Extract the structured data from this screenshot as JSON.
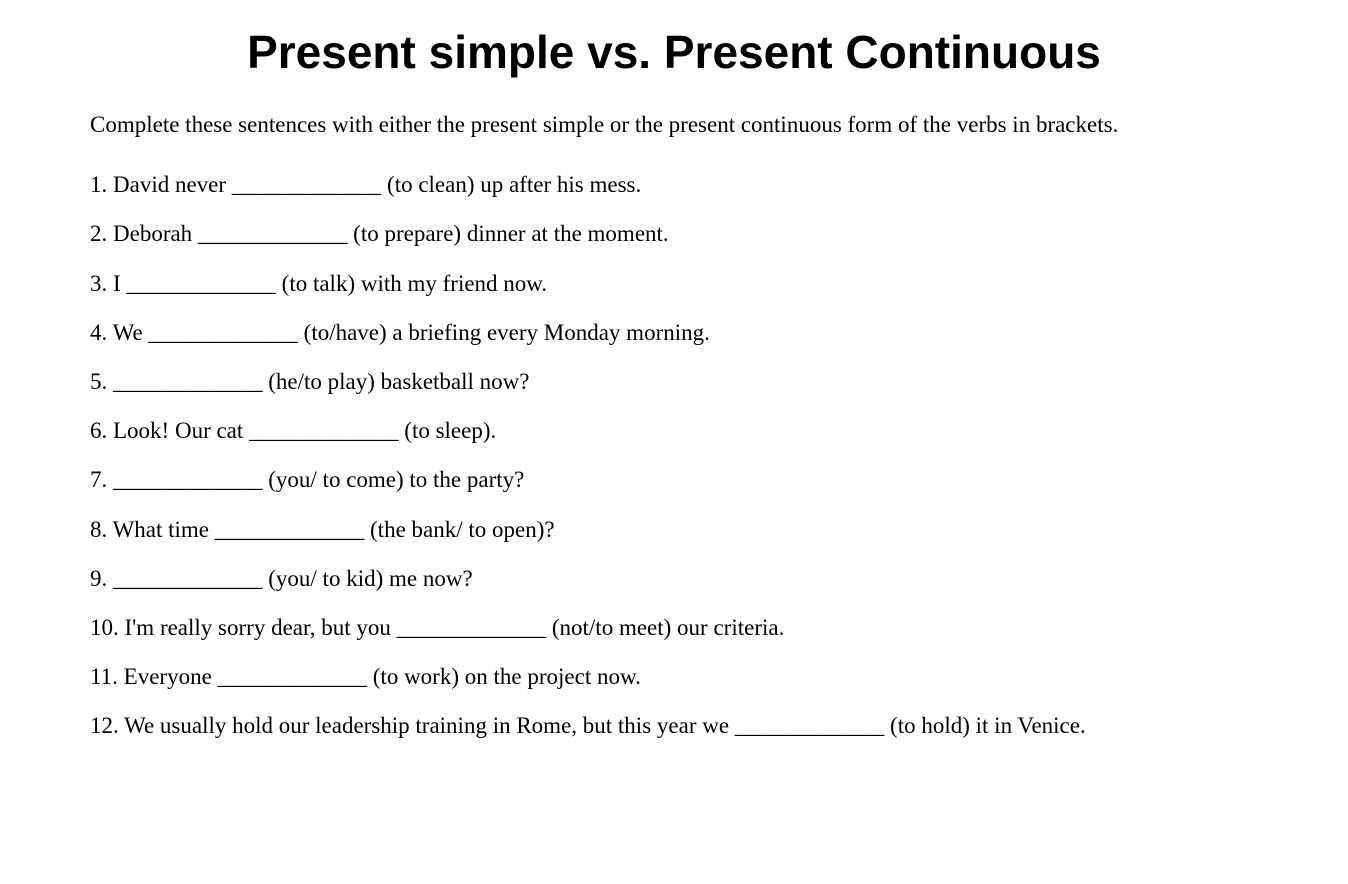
{
  "title": "Present simple vs. Present Continuous",
  "instructions": "Complete these sentences with either the present simple or the present continuous form of the verbs in brackets.",
  "questions": [
    "1. David never _____________ (to clean) up after his mess.",
    "2. Deborah _____________ (to prepare) dinner at the moment.",
    "3. I _____________ (to talk) with my friend now.",
    "4. We _____________ (to/have) a briefing every Monday morning.",
    "5. _____________ (he/to play) basketball now?",
    "6. Look! Our cat _____________ (to sleep).",
    "7. _____________ (you/ to come) to the party?",
    "8. What time _____________ (the bank/ to open)?",
    "9. _____________ (you/ to kid) me now?",
    "10. I'm really sorry dear, but you _____________ (not/to meet) our criteria.",
    "11. Everyone _____________ (to work) on the project now.",
    "12. We usually hold our leadership training in Rome, but this year we _____________ (to hold) it in Venice."
  ],
  "colors": {
    "background": "#ffffff",
    "text": "#000000"
  },
  "typography": {
    "title_fontsize": 46,
    "title_family": "Arial",
    "title_weight": "bold",
    "body_fontsize": 23,
    "body_family": "Georgia"
  }
}
